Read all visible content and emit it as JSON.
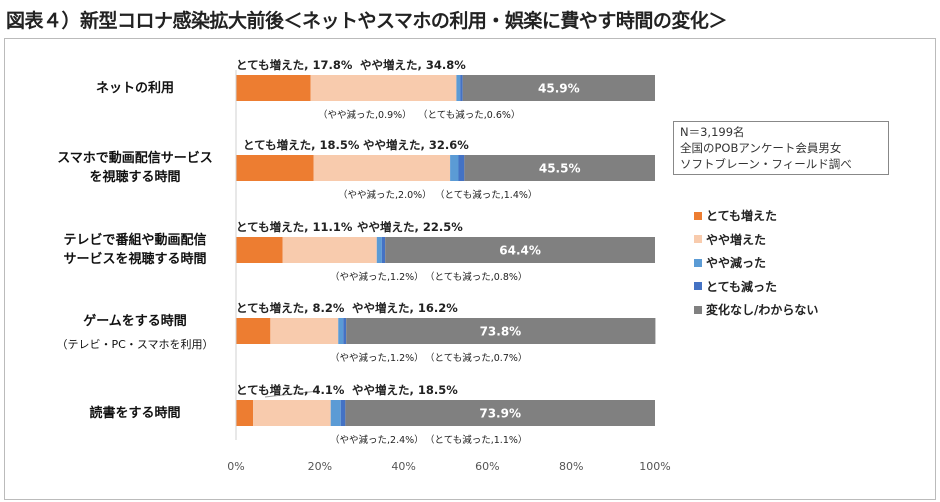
{
  "title": "図表４）新型コロナ感染拡大前後＜ネットやスマホの利用・娯楽に費やす時間の変化＞",
  "note": [
    "N＝3,199名",
    "全国のPOBアンケート会員男女",
    "ソフトブレーン・フィールド調べ"
  ],
  "chart_data": {
    "type": "bar",
    "orientation": "horizontal",
    "stacked": true,
    "percent": true,
    "xlim": [
      0,
      100
    ],
    "ticks": [
      "0%",
      "20%",
      "40%",
      "60%",
      "80%",
      "100%"
    ],
    "legend_position": "right",
    "categories": [
      {
        "label": "ネットの利用",
        "sub": ""
      },
      {
        "label": "スマホで動画配信サービスを視聴する時間",
        "sub": ""
      },
      {
        "label": "テレビで番組や動画配信サービスを視聴する時間",
        "sub": ""
      },
      {
        "label": "ゲームをする時間",
        "sub": "（テレビ・PC・スマホを利用）"
      },
      {
        "label": "読書をする時間",
        "sub": ""
      }
    ],
    "series": [
      {
        "name": "とても増えた",
        "color": "#ed7d31",
        "values": [
          17.8,
          18.5,
          11.1,
          8.2,
          4.1
        ]
      },
      {
        "name": "やや増えた",
        "color": "#f8cbad",
        "values": [
          34.8,
          32.6,
          22.5,
          16.2,
          18.5
        ]
      },
      {
        "name": "やや減った",
        "color": "#5b9bd5",
        "values": [
          0.9,
          2.0,
          1.2,
          1.2,
          2.4
        ]
      },
      {
        "name": "とても減った",
        "color": "#4472c4",
        "values": [
          0.6,
          1.4,
          0.8,
          0.7,
          1.1
        ]
      },
      {
        "name": "変化なし/わからない",
        "color": "#808080",
        "values": [
          45.9,
          45.5,
          64.4,
          73.8,
          73.9
        ]
      }
    ],
    "data_labels": [
      [
        "とても増えた, 17.8%",
        "やや増えた, 34.8%",
        "（やや減った,0.9%）",
        "（とても減った,0.6%）",
        "45.9%"
      ],
      [
        "とても増えた, 18.5%",
        "やや増えた, 32.6%",
        "（やや減った,2.0%）",
        "（とても減った,1.4%）",
        "45.5%"
      ],
      [
        "とても増えた, 11.1%",
        "やや増えた, 22.5%",
        "（やや減った,1.2%）",
        "（とても減った,0.8%）",
        "64.4%"
      ],
      [
        "とても増えた, 8.2%",
        "やや増えた, 16.2%",
        "（やや減った,1.2%）",
        "（とても減った,0.7%）",
        "73.8%"
      ],
      [
        "とても増えた, 4.1%",
        "やや増えた, 18.5%",
        "（やや減った,2.4%）",
        "（とても減った,1.1%）",
        "73.9%"
      ]
    ]
  }
}
